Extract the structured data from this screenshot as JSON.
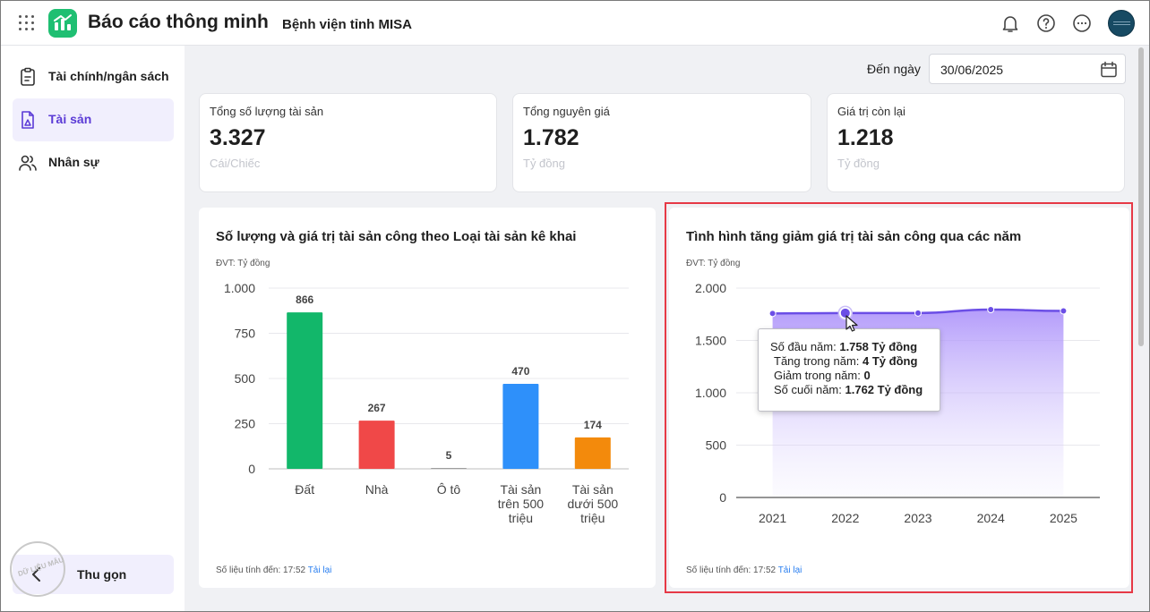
{
  "header": {
    "app_title": "Báo cáo thông minh",
    "org_name": "Bệnh viện tỉnh MISA"
  },
  "sidebar": {
    "items": [
      {
        "label": "Tài chính/ngân sách",
        "icon": "clipboard-icon"
      },
      {
        "label": "Tài sản",
        "icon": "asset-document-icon",
        "active": true
      },
      {
        "label": "Nhân sự",
        "icon": "users-icon"
      }
    ],
    "collapse_label": "Thu gọn",
    "stamp_text": "DỮ LIỆU MẪU"
  },
  "filter": {
    "label": "Đến ngày",
    "date_value": "30/06/2025"
  },
  "kpis": [
    {
      "title": "Tổng số lượng tài sản",
      "value": "3.327",
      "unit": "Cái/Chiếc"
    },
    {
      "title": "Tổng nguyên giá",
      "value": "1.782",
      "unit": "Tỷ đồng"
    },
    {
      "title": "Giá trị còn lại",
      "value": "1.218",
      "unit": "Tỷ đồng"
    }
  ],
  "bar_card": {
    "title": "Số lượng và giá trị tài sản công theo Loại tài sản kê khai",
    "unit_label": "ĐVT: Tỷ đồng",
    "footer_prefix": "Số liệu tính đến: 17:52",
    "reload_label": "Tải lại"
  },
  "area_card": {
    "title": "Tình hình tăng giảm giá trị tài sản công qua các năm",
    "unit_label": "ĐVT: Tỷ đồng",
    "footer_prefix": "Số liệu tính đến: 17:52",
    "reload_label": "Tải lại"
  },
  "tooltip": {
    "rows": [
      {
        "label": "Số đầu năm:",
        "value": "1.758 Tỷ đồng"
      },
      {
        "label": "Tăng trong năm:",
        "value": "4 Tỷ đồng"
      },
      {
        "label": "Giảm trong năm:",
        "value": "0"
      },
      {
        "label": "Số cuối năm:",
        "value": "1.762 Tỷ đồng"
      }
    ]
  },
  "colors": {
    "brand_green": "#1fbf72",
    "accent_purple": "#6b4ee6",
    "highlight_red": "#e63946",
    "bar_green": "#12b76a",
    "bar_red": "#f04848",
    "bar_blue": "#2e90fa",
    "bar_orange": "#f38a0c"
  },
  "chart_data": [
    {
      "type": "bar",
      "title": "Số lượng và giá trị tài sản công theo Loại tài sản kê khai",
      "ylabel": "ĐVT: Tỷ đồng",
      "categories": [
        [
          "Đất"
        ],
        [
          "Nhà"
        ],
        [
          "Ô tô"
        ],
        [
          "Tài sản",
          "trên 500",
          "triệu"
        ],
        [
          "Tài sản",
          "dưới 500",
          "triệu"
        ]
      ],
      "values": [
        866,
        267,
        5,
        470,
        174
      ],
      "value_labels": [
        "866",
        "267",
        "5",
        "470",
        "174"
      ],
      "bar_colors": [
        "#12b76a",
        "#f04848",
        "#9e9e9e",
        "#2e90fa",
        "#f38a0c"
      ],
      "ylim": [
        0,
        1000
      ],
      "yticks": [
        0,
        250,
        500,
        750,
        1000
      ],
      "ytick_labels": [
        "0",
        "250",
        "500",
        "750",
        "1.000"
      ],
      "grid": true
    },
    {
      "type": "area",
      "title": "Tình hình tăng giảm giá trị tài sản công qua các năm",
      "ylabel": "ĐVT: Tỷ đồng",
      "x": [
        "2021",
        "2022",
        "2023",
        "2024",
        "2025"
      ],
      "values": [
        1758,
        1762,
        1762,
        1795,
        1782
      ],
      "ylim": [
        0,
        2000
      ],
      "yticks": [
        0,
        500,
        1000,
        1500,
        2000
      ],
      "ytick_labels": [
        "0",
        "500",
        "1.000",
        "1.500",
        "2.000"
      ],
      "highlighted_index": 1,
      "grid": true
    }
  ]
}
